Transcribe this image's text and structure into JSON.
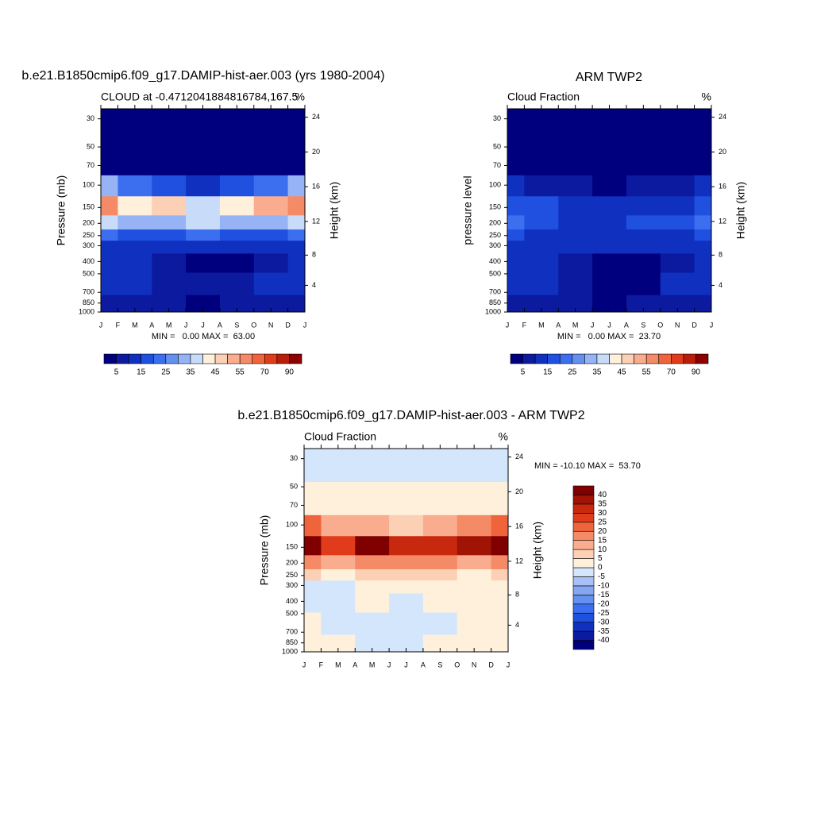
{
  "chart_data": [
    {
      "type": "contour",
      "title": "b.e21.B1850cmip6.f09_g17.DAMIP-hist-aer.003 (yrs 1980-2004)",
      "left_subtitle": "CLOUD at -0.4712041884816784,167.5",
      "right_subtitle": "%",
      "ylabel": "Pressure (mb)",
      "y2label": "Height (km)",
      "stats": "MIN =   0.00 MAX =  63.00",
      "xlim": [
        0,
        12
      ],
      "xticks": [
        {
          "value": 0,
          "label": "J"
        },
        {
          "value": 1,
          "label": "F"
        },
        {
          "value": 2,
          "label": "M"
        },
        {
          "value": 3,
          "label": "A"
        },
        {
          "value": 4,
          "label": "M"
        },
        {
          "value": 5,
          "label": "J"
        },
        {
          "value": 6,
          "label": "J"
        },
        {
          "value": 7,
          "label": "A"
        },
        {
          "value": 8,
          "label": "S"
        },
        {
          "value": 9,
          "label": "O"
        },
        {
          "value": 10,
          "label": "N"
        },
        {
          "value": 11,
          "label": "D"
        },
        {
          "value": 12,
          "label": "J"
        }
      ],
      "ylim": [
        1000,
        25
      ],
      "yscale": "log",
      "yticks": [
        30,
        50,
        70,
        100,
        150,
        200,
        250,
        300,
        400,
        500,
        700,
        850,
        1000
      ],
      "y2ticks": [
        4,
        8,
        12,
        16,
        20,
        24
      ],
      "levels": [
        5,
        10,
        15,
        20,
        25,
        30,
        35,
        40,
        45,
        50,
        55,
        60,
        70,
        80,
        90
      ],
      "colors": [
        "#00007f",
        "#0b1a9e",
        "#1030c0",
        "#2050e0",
        "#3c6ef0",
        "#6490f0",
        "#96b4f5",
        "#c8dcfa",
        "#fff0dc",
        "#fcd0b4",
        "#f9ad8e",
        "#f58a66",
        "#f0643c",
        "#e03c1c",
        "#b81e0a",
        "#8c0000"
      ],
      "colorbar": "horizontal",
      "colorbar_label_every": 2,
      "grid": {
        "x": [
          0,
          2,
          4,
          6,
          8,
          10,
          12
        ],
        "y": [
          30,
          70,
          100,
          150,
          200,
          250,
          300,
          400,
          600,
          900
        ],
        "z": [
          [
            1,
            1,
            1,
            1,
            1,
            1,
            1
          ],
          [
            3,
            3,
            3,
            3,
            3,
            3,
            3
          ],
          [
            30,
            20,
            15,
            12,
            15,
            20,
            30
          ],
          [
            55,
            40,
            45,
            38,
            40,
            50,
            55
          ],
          [
            35,
            30,
            32,
            35,
            32,
            30,
            35
          ],
          [
            20,
            18,
            18,
            20,
            18,
            18,
            20
          ],
          [
            12,
            12,
            10,
            10,
            10,
            12,
            12
          ],
          [
            10,
            10,
            8,
            4,
            4,
            8,
            10
          ],
          [
            12,
            10,
            8,
            5,
            8,
            10,
            12
          ],
          [
            8,
            8,
            6,
            4,
            6,
            8,
            8
          ]
        ]
      }
    },
    {
      "type": "contour",
      "title": "ARM TWP2",
      "left_subtitle": "Cloud Fraction",
      "right_subtitle": "%",
      "ylabel": "pressure level",
      "y2label": "Height (km)",
      "stats": "MIN =   0.00 MAX =  23.70",
      "xlim": [
        0,
        12
      ],
      "xticks": [
        {
          "value": 0,
          "label": "J"
        },
        {
          "value": 1,
          "label": "F"
        },
        {
          "value": 2,
          "label": "M"
        },
        {
          "value": 3,
          "label": "A"
        },
        {
          "value": 4,
          "label": "M"
        },
        {
          "value": 5,
          "label": "J"
        },
        {
          "value": 6,
          "label": "J"
        },
        {
          "value": 7,
          "label": "A"
        },
        {
          "value": 8,
          "label": "S"
        },
        {
          "value": 9,
          "label": "O"
        },
        {
          "value": 10,
          "label": "N"
        },
        {
          "value": 11,
          "label": "D"
        },
        {
          "value": 12,
          "label": "J"
        }
      ],
      "ylim": [
        1000,
        25
      ],
      "yscale": "log",
      "yticks": [
        30,
        50,
        70,
        100,
        150,
        200,
        250,
        300,
        400,
        500,
        700,
        850,
        1000
      ],
      "y2ticks": [
        4,
        8,
        12,
        16,
        20,
        24
      ],
      "levels": [
        5,
        10,
        15,
        20,
        25,
        30,
        35,
        40,
        45,
        50,
        55,
        60,
        70,
        80,
        90
      ],
      "colors": [
        "#00007f",
        "#0b1a9e",
        "#1030c0",
        "#2050e0",
        "#3c6ef0",
        "#6490f0",
        "#96b4f5",
        "#c8dcfa",
        "#fff0dc",
        "#fcd0b4",
        "#f9ad8e",
        "#f58a66",
        "#f0643c",
        "#e03c1c",
        "#b81e0a",
        "#8c0000"
      ],
      "colorbar": "horizontal",
      "colorbar_label_every": 2,
      "grid": {
        "x": [
          0,
          2,
          4,
          6,
          8,
          10,
          12
        ],
        "y": [
          30,
          70,
          100,
          150,
          200,
          250,
          300,
          400,
          600,
          900
        ],
        "z": [
          [
            1,
            1,
            1,
            1,
            1,
            1,
            1
          ],
          [
            2,
            2,
            2,
            2,
            2,
            2,
            2
          ],
          [
            10,
            8,
            6,
            4,
            6,
            8,
            12
          ],
          [
            18,
            15,
            12,
            12,
            14,
            14,
            18
          ],
          [
            22,
            16,
            14,
            14,
            15,
            16,
            20
          ],
          [
            16,
            14,
            13,
            12,
            14,
            14,
            16
          ],
          [
            14,
            12,
            10,
            10,
            12,
            12,
            12
          ],
          [
            12,
            10,
            8,
            4,
            3,
            8,
            10
          ],
          [
            12,
            10,
            8,
            4,
            4,
            10,
            12
          ],
          [
            8,
            6,
            6,
            4,
            6,
            8,
            8
          ]
        ]
      }
    },
    {
      "type": "contour",
      "title": "b.e21.B1850cmip6.f09_g17.DAMIP-hist-aer.003 - ARM TWP2",
      "left_subtitle": "Cloud Fraction",
      "right_subtitle": "%",
      "ylabel": "Pressure (mb)",
      "y2label": "Height (km)",
      "stats": "MIN = -10.10 MAX =  53.70",
      "xlim": [
        0,
        12
      ],
      "xticks": [
        {
          "value": 0,
          "label": "J"
        },
        {
          "value": 1,
          "label": "F"
        },
        {
          "value": 2,
          "label": "M"
        },
        {
          "value": 3,
          "label": "A"
        },
        {
          "value": 4,
          "label": "M"
        },
        {
          "value": 5,
          "label": "J"
        },
        {
          "value": 6,
          "label": "J"
        },
        {
          "value": 7,
          "label": "A"
        },
        {
          "value": 8,
          "label": "S"
        },
        {
          "value": 9,
          "label": "O"
        },
        {
          "value": 10,
          "label": "N"
        },
        {
          "value": 11,
          "label": "D"
        },
        {
          "value": 12,
          "label": "J"
        }
      ],
      "ylim": [
        1000,
        25
      ],
      "yscale": "log",
      "yticks": [
        30,
        50,
        70,
        100,
        150,
        200,
        250,
        300,
        400,
        500,
        700,
        850,
        1000
      ],
      "y2ticks": [
        4,
        8,
        12,
        16,
        20,
        24
      ],
      "levels": [
        -40,
        -35,
        -30,
        -25,
        -20,
        -15,
        -10,
        -5,
        0,
        5,
        10,
        15,
        20,
        25,
        30,
        35,
        40
      ],
      "colors": [
        "#00007f",
        "#0b1a9e",
        "#1030c0",
        "#2050e0",
        "#3c6ef0",
        "#6490f0",
        "#86a6f2",
        "#a8c0f6",
        "#d4e6fb",
        "#fff0dc",
        "#fcd0b4",
        "#f9ad8e",
        "#f58a66",
        "#f0643c",
        "#e03c1c",
        "#c8280e",
        "#a01405",
        "#800000"
      ],
      "colorbar": "vertical",
      "colorbar_label_every": 1,
      "grid": {
        "x": [
          0,
          2,
          4,
          6,
          8,
          10,
          12
        ],
        "y": [
          30,
          70,
          100,
          150,
          200,
          250,
          300,
          400,
          600,
          900
        ],
        "z": [
          [
            -3,
            -3,
            -3,
            -3,
            -3,
            -3,
            -3
          ],
          [
            3,
            3,
            3,
            3,
            3,
            3,
            3
          ],
          [
            20,
            12,
            10,
            8,
            10,
            15,
            20
          ],
          [
            45,
            28,
            40,
            30,
            32,
            38,
            45
          ],
          [
            15,
            12,
            15,
            18,
            15,
            14,
            15
          ],
          [
            6,
            4,
            5,
            6,
            5,
            4,
            6
          ],
          [
            -2,
            -1,
            1,
            2,
            2,
            1,
            1
          ],
          [
            -2,
            -2,
            1,
            -2,
            2,
            2,
            2
          ],
          [
            3,
            -3,
            -1,
            -2,
            -3,
            2,
            2
          ],
          [
            2,
            1,
            -2,
            -1,
            1,
            2,
            2
          ]
        ]
      }
    }
  ]
}
